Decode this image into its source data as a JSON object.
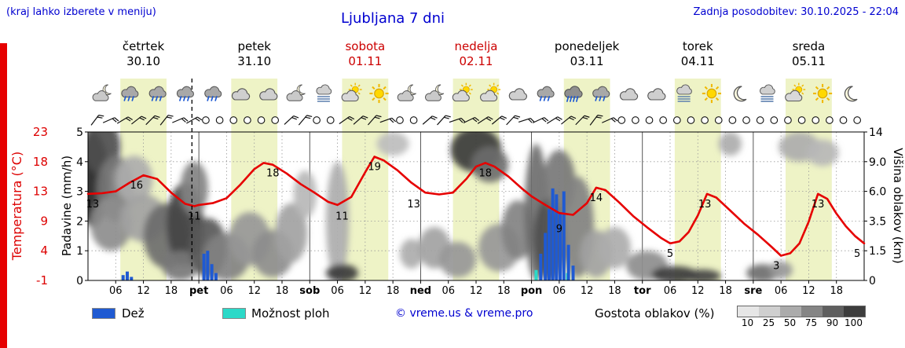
{
  "header": {
    "hint": "(kraj lahko izberete v meniju)",
    "title": "Ljubljana 7 dni",
    "updated": "Zadnja posodobitev: 30.10.2025 - 22:04"
  },
  "days": [
    {
      "name": "četrtek",
      "date": "30.10",
      "color": "#000000"
    },
    {
      "name": "petek",
      "date": "31.10",
      "color": "#000000"
    },
    {
      "name": "sobota",
      "date": "01.11",
      "color": "#cc0000"
    },
    {
      "name": "nedelja",
      "date": "02.11",
      "color": "#cc0000"
    },
    {
      "name": "ponedeljek",
      "date": "03.11",
      "color": "#000000"
    },
    {
      "name": "torek",
      "date": "04.11",
      "color": "#000000"
    },
    {
      "name": "sreda",
      "date": "05.11",
      "color": "#000000"
    }
  ],
  "axes": {
    "temp_label": "Temperatura (°C)",
    "temp_color": "#dd0000",
    "temp_ticks": [
      "23",
      "18",
      "13",
      "9",
      "4",
      "-1"
    ],
    "precip_label": "Padavine (mm/h)",
    "precip_ticks": [
      "5",
      "4",
      "3",
      "2",
      "1",
      "0"
    ],
    "cloud_label": "Višina oblakov (km)",
    "cloud_ticks": [
      "14",
      "9.0",
      "6.0",
      "3.5",
      "1.5",
      "0"
    ]
  },
  "x_ticks": [
    {
      "t": 6,
      "label": "06",
      "day": false
    },
    {
      "t": 12,
      "label": "12",
      "day": false
    },
    {
      "t": 18,
      "label": "18",
      "day": false
    },
    {
      "t": 24,
      "label": "pet",
      "day": true
    },
    {
      "t": 30,
      "label": "06",
      "day": false
    },
    {
      "t": 36,
      "label": "12",
      "day": false
    },
    {
      "t": 42,
      "label": "18",
      "day": false
    },
    {
      "t": 48,
      "label": "sob",
      "day": true
    },
    {
      "t": 54,
      "label": "06",
      "day": false
    },
    {
      "t": 60,
      "label": "12",
      "day": false
    },
    {
      "t": 66,
      "label": "18",
      "day": false
    },
    {
      "t": 72,
      "label": "ned",
      "day": true
    },
    {
      "t": 78,
      "label": "06",
      "day": false
    },
    {
      "t": 84,
      "label": "12",
      "day": false
    },
    {
      "t": 90,
      "label": "18",
      "day": false
    },
    {
      "t": 96,
      "label": "pon",
      "day": true
    },
    {
      "t": 102,
      "label": "06",
      "day": false
    },
    {
      "t": 108,
      "label": "12",
      "day": false
    },
    {
      "t": 114,
      "label": "18",
      "day": false
    },
    {
      "t": 120,
      "label": "tor",
      "day": true
    },
    {
      "t": 126,
      "label": "06",
      "day": false
    },
    {
      "t": 132,
      "label": "12",
      "day": false
    },
    {
      "t": 138,
      "label": "18",
      "day": false
    },
    {
      "t": 144,
      "label": "sre",
      "day": true
    },
    {
      "t": 150,
      "label": "06",
      "day": false
    },
    {
      "t": 156,
      "label": "12",
      "day": false
    },
    {
      "t": 162,
      "label": "18",
      "day": false
    }
  ],
  "chart_data": {
    "type": "line",
    "subtype": "meteogram",
    "x_unit": "hours from čet 30.10 00:00",
    "temp_axis_range": [
      -1,
      23
    ],
    "precip_axis_range": [
      0,
      5
    ],
    "now_line_t": 22.5,
    "day_bands": {
      "start_hour": 7,
      "end_hour": 17,
      "color": "#eef3c6"
    },
    "temperature": {
      "name": "Temperatura (°C)",
      "color": "#e60000",
      "x": [
        0,
        3,
        6,
        9,
        12,
        15,
        18,
        21,
        23,
        24,
        27,
        30,
        33,
        36,
        38,
        40,
        43,
        46,
        49,
        52,
        54,
        57,
        60,
        62,
        64,
        67,
        70,
        73,
        76,
        79,
        82,
        84,
        86,
        88,
        91,
        94,
        96,
        99,
        102,
        105,
        108,
        110,
        112,
        115,
        118,
        121,
        124,
        126,
        128,
        130,
        132,
        134,
        136,
        139,
        142,
        145,
        148,
        150,
        152,
        154,
        156,
        158,
        160,
        162,
        164,
        166,
        168
      ],
      "y": [
        13,
        13.1,
        13.4,
        14.8,
        16,
        15.4,
        13.2,
        11.4,
        11,
        11.2,
        11.5,
        12.3,
        14.5,
        17,
        18,
        17.7,
        16.3,
        14.6,
        13.2,
        11.7,
        11.2,
        12.5,
        16.5,
        19,
        18.4,
        16.8,
        14.8,
        13.2,
        12.9,
        13.2,
        15.5,
        17.4,
        18,
        17.4,
        15.8,
        13.8,
        12.6,
        11.2,
        9.9,
        9.6,
        11.5,
        14,
        13.6,
        11.6,
        9.4,
        7.6,
        5.9,
        5,
        5.3,
        6.8,
        9.5,
        13,
        12.4,
        10.3,
        8.2,
        6.4,
        4.4,
        3,
        3.4,
        5,
        8.5,
        13,
        12.2,
        9.8,
        7.8,
        6.2,
        5
      ]
    },
    "temperature_labels": [
      {
        "t": 1,
        "v": 13
      },
      {
        "t": 10.5,
        "v": 16
      },
      {
        "t": 23,
        "v": 11
      },
      {
        "t": 40,
        "v": 18
      },
      {
        "t": 55,
        "v": 11
      },
      {
        "t": 62,
        "v": 19
      },
      {
        "t": 70.5,
        "v": 13
      },
      {
        "t": 86,
        "v": 18
      },
      {
        "t": 102,
        "v": 9
      },
      {
        "t": 110,
        "v": 14
      },
      {
        "t": 126,
        "v": 5
      },
      {
        "t": 133.5,
        "v": 13
      },
      {
        "t": 149,
        "v": 3
      },
      {
        "t": 158,
        "v": 13
      },
      {
        "t": 166.5,
        "v": 5
      }
    ],
    "precipitation_bars": [
      {
        "t": 7.6,
        "h": 0.18,
        "kind": "rain"
      },
      {
        "t": 8.5,
        "h": 0.3,
        "kind": "rain"
      },
      {
        "t": 9.4,
        "h": 0.12,
        "kind": "rain"
      },
      {
        "t": 25.1,
        "h": 0.9,
        "kind": "rain"
      },
      {
        "t": 25.9,
        "h": 1.0,
        "kind": "rain"
      },
      {
        "t": 26.8,
        "h": 0.55,
        "kind": "rain"
      },
      {
        "t": 27.7,
        "h": 0.25,
        "kind": "rain"
      },
      {
        "t": 97.0,
        "h": 0.35,
        "kind": "shower"
      },
      {
        "t": 98,
        "h": 0.9,
        "kind": "rain"
      },
      {
        "t": 99,
        "h": 1.6,
        "kind": "rain"
      },
      {
        "t": 99.8,
        "h": 2.4,
        "kind": "rain"
      },
      {
        "t": 100.6,
        "h": 3.1,
        "kind": "rain"
      },
      {
        "t": 101.4,
        "h": 2.9,
        "kind": "rain"
      },
      {
        "t": 102.2,
        "h": 2.3,
        "kind": "rain"
      },
      {
        "t": 103,
        "h": 3.0,
        "kind": "rain"
      },
      {
        "t": 103.8,
        "h": 0.25,
        "kind": "shower"
      },
      {
        "t": 104,
        "h": 1.2,
        "kind": "rain"
      },
      {
        "t": 105,
        "h": 0.5,
        "kind": "rain"
      }
    ],
    "cloud_blobs": [
      {
        "t": 1,
        "u": 3.4,
        "rx": 3.5,
        "ry": 1.6,
        "g": 0.95
      },
      {
        "t": 3,
        "u": 4.5,
        "rx": 4,
        "ry": 0.9,
        "g": 0.75
      },
      {
        "t": 6,
        "u": 3.1,
        "rx": 4,
        "ry": 1.1,
        "g": 0.55
      },
      {
        "t": 10,
        "u": 3.4,
        "rx": 4,
        "ry": 0.8,
        "g": 0.3
      },
      {
        "t": 5,
        "u": 1.9,
        "rx": 4.5,
        "ry": 0.9,
        "g": 0.45
      },
      {
        "t": 12,
        "u": 2.1,
        "rx": 5,
        "ry": 0.8,
        "g": 0.35
      },
      {
        "t": 17,
        "u": 1.5,
        "rx": 5,
        "ry": 1.1,
        "g": 0.6
      },
      {
        "t": 21,
        "u": 1.9,
        "rx": 4,
        "ry": 1.4,
        "g": 0.8
      },
      {
        "t": 23,
        "u": 3.1,
        "rx": 3,
        "ry": 0.9,
        "g": 0.5
      },
      {
        "t": 20,
        "u": 0.5,
        "rx": 4,
        "ry": 0.5,
        "g": 0.55
      },
      {
        "t": 26,
        "u": 1.1,
        "rx": 4,
        "ry": 1.0,
        "g": 0.7
      },
      {
        "t": 30,
        "u": 0.8,
        "rx": 5,
        "ry": 0.8,
        "g": 0.5
      },
      {
        "t": 35,
        "u": 1.4,
        "rx": 4.5,
        "ry": 0.9,
        "g": 0.4
      },
      {
        "t": 40,
        "u": 0.9,
        "rx": 4.5,
        "ry": 0.8,
        "g": 0.45
      },
      {
        "t": 44,
        "u": 1.6,
        "rx": 3.5,
        "ry": 1.0,
        "g": 0.35
      },
      {
        "t": 47,
        "u": 2.9,
        "rx": 2.5,
        "ry": 0.8,
        "g": 0.25
      },
      {
        "t": 54,
        "u": 2.0,
        "rx": 2.5,
        "ry": 2.0,
        "g": 0.3
      },
      {
        "t": 55,
        "u": 0.25,
        "rx": 3.5,
        "ry": 0.3,
        "g": 0.85
      },
      {
        "t": 66,
        "u": 4.6,
        "rx": 3.5,
        "ry": 0.4,
        "g": 0.22
      },
      {
        "t": 70,
        "u": 0.9,
        "rx": 2.5,
        "ry": 0.5,
        "g": 0.3
      },
      {
        "t": 75,
        "u": 1.1,
        "rx": 3.5,
        "ry": 0.7,
        "g": 0.35
      },
      {
        "t": 80,
        "u": 0.7,
        "rx": 4,
        "ry": 0.6,
        "g": 0.4
      },
      {
        "t": 84,
        "u": 4.4,
        "rx": 5.5,
        "ry": 0.75,
        "g": 0.85
      },
      {
        "t": 87,
        "u": 3.9,
        "rx": 4,
        "ry": 0.6,
        "g": 0.6
      },
      {
        "t": 89,
        "u": 1.1,
        "rx": 4.5,
        "ry": 0.8,
        "g": 0.4
      },
      {
        "t": 93,
        "u": 1.7,
        "rx": 3.5,
        "ry": 1.0,
        "g": 0.5
      },
      {
        "t": 97,
        "u": 2.3,
        "rx": 2.5,
        "ry": 2.3,
        "g": 0.6
      },
      {
        "t": 100,
        "u": 1.4,
        "rx": 3.5,
        "ry": 1.4,
        "g": 0.75
      },
      {
        "t": 102,
        "u": 3.3,
        "rx": 3.5,
        "ry": 1.1,
        "g": 0.55
      },
      {
        "t": 106,
        "u": 1.8,
        "rx": 3.5,
        "ry": 1.7,
        "g": 0.5
      },
      {
        "t": 110,
        "u": 0.9,
        "rx": 3.5,
        "ry": 0.8,
        "g": 0.35
      },
      {
        "t": 114,
        "u": 1.1,
        "rx": 3.5,
        "ry": 0.7,
        "g": 0.3
      },
      {
        "t": 121,
        "u": 0.5,
        "rx": 4.5,
        "ry": 0.5,
        "g": 0.45
      },
      {
        "t": 127,
        "u": 0.2,
        "rx": 5,
        "ry": 0.28,
        "g": 0.85
      },
      {
        "t": 133,
        "u": 0.15,
        "rx": 4,
        "ry": 0.22,
        "g": 0.8
      },
      {
        "t": 139,
        "u": 4.6,
        "rx": 2.5,
        "ry": 0.4,
        "g": 0.3
      },
      {
        "t": 146,
        "u": 0.25,
        "rx": 3.5,
        "ry": 0.3,
        "g": 0.6
      },
      {
        "t": 150,
        "u": 0.35,
        "rx": 2.5,
        "ry": 0.3,
        "g": 0.4
      },
      {
        "t": 154,
        "u": 4.5,
        "rx": 4.5,
        "ry": 0.5,
        "g": 0.3
      },
      {
        "t": 159,
        "u": 4.3,
        "rx": 3.5,
        "ry": 0.45,
        "g": 0.25
      }
    ]
  },
  "icons": {
    "first_t": 3,
    "step_hours": 6,
    "types": [
      "moon-cloud",
      "rain",
      "rain",
      "rain",
      "rain",
      "cloud",
      "cloud",
      "moon-cloud",
      "fog",
      "sun-cloud",
      "sun",
      "moon-cloud",
      "moon-cloud",
      "sun-cloud",
      "sun-cloud",
      "cloud",
      "rain",
      "heavy-rain",
      "rain",
      "cloud",
      "cloud",
      "fog",
      "sun",
      "moon",
      "fog",
      "sun-cloud",
      "sun",
      "moon"
    ]
  },
  "wind": {
    "first_t": 1.5,
    "step_hours": 3,
    "symbols": [
      "b",
      "b",
      "b",
      "b",
      "b",
      "b",
      "b",
      "b",
      "o",
      "o",
      "o",
      "o",
      "o",
      "o",
      "b",
      "b",
      "o",
      "o",
      "b",
      "b",
      "b",
      "b",
      "o",
      "o",
      "b",
      "b",
      "b",
      "b",
      "b",
      "b",
      "b",
      "b",
      "b",
      "b",
      "b",
      "b",
      "b",
      "b",
      "o",
      "o",
      "o",
      "o",
      "o",
      "o",
      "o",
      "o",
      "o",
      "o",
      "o",
      "o",
      "o",
      "o",
      "o",
      "o",
      "o",
      "o"
    ]
  },
  "legend": {
    "rain_label": "Dež",
    "rain_color": "#1f5ad2",
    "shower_label": "Možnost ploh",
    "shower_color": "#2bd9c8",
    "copyright": "© vreme.us & vreme.pro",
    "cloud_density_label": "Gostota oblakov (%)",
    "density_steps": [
      {
        "v": "10",
        "c": "#e6e6e6"
      },
      {
        "v": "25",
        "c": "#cfcfcf"
      },
      {
        "v": "50",
        "c": "#ababab"
      },
      {
        "v": "75",
        "c": "#858585"
      },
      {
        "v": "90",
        "c": "#5f5f5f"
      },
      {
        "v": "100",
        "c": "#3d3d3d"
      }
    ]
  }
}
